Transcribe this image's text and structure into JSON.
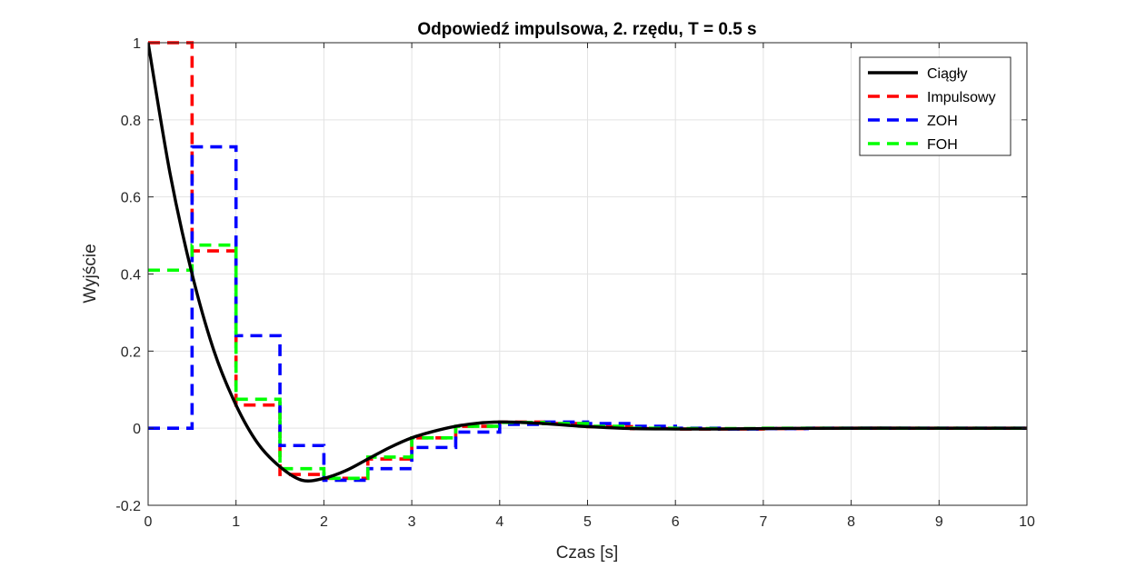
{
  "chart_data": {
    "type": "line",
    "title": "Odpowiedź impulsowa, 2. rzędu, T = 0.5 s",
    "xlabel": "Czas [s]",
    "ylabel": "Wyjście",
    "xlim": [
      0,
      10
    ],
    "ylim": [
      -0.2,
      1
    ],
    "xticks": [
      0,
      1,
      2,
      3,
      4,
      5,
      6,
      7,
      8,
      9,
      10
    ],
    "xtick_labels": [
      "0",
      "1",
      "2",
      "3",
      "4",
      "5",
      "6",
      "7",
      "8",
      "9",
      "10"
    ],
    "yticks": [
      -0.2,
      0,
      0.2,
      0.4,
      0.6,
      0.8,
      1
    ],
    "ytick_labels": [
      "-0.2",
      "0",
      "0.2",
      "0.4",
      "0.6",
      "0.8",
      "1"
    ],
    "grid": true,
    "legend_position": "top-right",
    "series": [
      {
        "name": "Ciągły",
        "style": "solid",
        "color": "#000000",
        "x": [
          0,
          0.25,
          0.5,
          0.75,
          1.0,
          1.25,
          1.5,
          1.75,
          2.0,
          2.25,
          2.5,
          2.75,
          3.0,
          3.25,
          3.5,
          3.75,
          4.0,
          4.25,
          4.5,
          4.75,
          5.0,
          5.5,
          6.0,
          6.5,
          7.0,
          8.0,
          9.0,
          10.0
        ],
        "y": [
          1.0,
          0.66,
          0.4,
          0.2,
          0.06,
          -0.04,
          -0.1,
          -0.135,
          -0.13,
          -0.11,
          -0.08,
          -0.05,
          -0.025,
          -0.008,
          0.005,
          0.013,
          0.016,
          0.015,
          0.012,
          0.008,
          0.004,
          -0.001,
          -0.002,
          -0.002,
          -0.001,
          0.0,
          0.0,
          0.0
        ]
      },
      {
        "name": "Impulsowy",
        "style": "dashed-step",
        "color": "#ff0000",
        "x": [
          0,
          0.5,
          1.0,
          1.5,
          2.0,
          2.5,
          3.0,
          3.5,
          4.0,
          4.5,
          5.0,
          5.5,
          6.0,
          6.5,
          7.0,
          7.5,
          8.0,
          8.5,
          9.0,
          9.5,
          10.0
        ],
        "y": [
          1.0,
          0.46,
          0.06,
          -0.12,
          -0.13,
          -0.08,
          -0.025,
          0.005,
          0.016,
          0.012,
          0.004,
          -0.001,
          -0.002,
          -0.002,
          -0.001,
          0.0,
          0.0,
          0.0,
          0.0,
          0.0,
          0.0
        ]
      },
      {
        "name": "ZOH",
        "style": "dashed-step",
        "color": "#0000ff",
        "x": [
          0,
          0.5,
          1.0,
          1.5,
          2.0,
          2.5,
          3.0,
          3.5,
          4.0,
          4.5,
          5.0,
          5.5,
          6.0,
          6.5,
          7.0,
          7.5,
          8.0,
          8.5,
          9.0,
          9.5,
          10.0
        ],
        "y": [
          0.0,
          0.73,
          0.24,
          -0.045,
          -0.135,
          -0.105,
          -0.05,
          -0.01,
          0.01,
          0.016,
          0.012,
          0.005,
          0.0,
          -0.002,
          -0.001,
          0.0,
          0.0,
          0.0,
          0.0,
          0.0,
          0.0
        ]
      },
      {
        "name": "FOH",
        "style": "dashed-step",
        "color": "#00ff00",
        "x": [
          0,
          0.5,
          1.0,
          1.5,
          2.0,
          2.5,
          3.0,
          3.5,
          4.0,
          4.5,
          5.0,
          5.5,
          6.0,
          6.5,
          7.0,
          7.5,
          8.0,
          8.5,
          9.0,
          9.5,
          10.0
        ],
        "y": [
          0.41,
          0.475,
          0.075,
          -0.105,
          -0.13,
          -0.075,
          -0.025,
          0.005,
          0.015,
          0.012,
          0.005,
          0.0,
          -0.001,
          -0.001,
          0.0,
          0.0,
          0.0,
          0.0,
          0.0,
          0.0,
          0.0
        ]
      }
    ]
  }
}
